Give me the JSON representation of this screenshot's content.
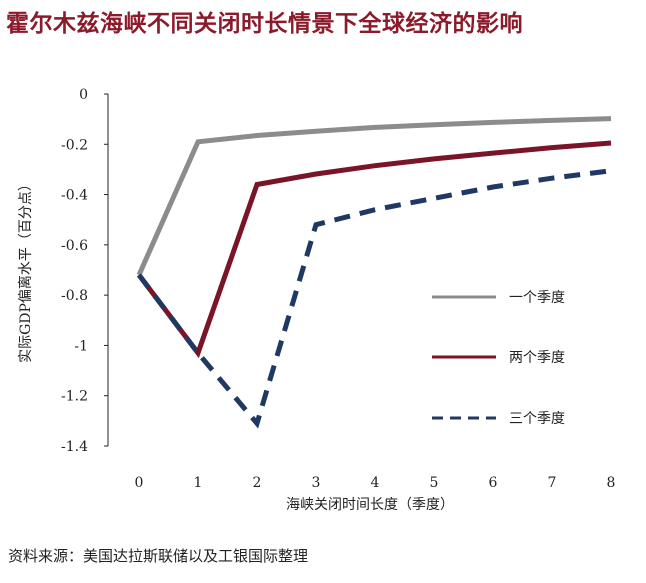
{
  "title": "霍尔木兹海峡不同关闭时长情景下全球经济的影响",
  "source": "资料来源：美国达拉斯联储以及工银国际整理",
  "chart_data": {
    "type": "line",
    "title": "霍尔木兹海峡不同关闭时长情景下全球经济的影响",
    "xlabel": "海峡关闭时间长度（季度）",
    "ylabel": "实际GDP偏离水平（百分点）",
    "xlim": [
      0,
      8
    ],
    "ylim": [
      -1.4,
      0
    ],
    "x_ticks": [
      0,
      1,
      2,
      3,
      4,
      5,
      6,
      7,
      8
    ],
    "y_ticks": [
      0,
      -0.2,
      -0.4,
      -0.6,
      -0.8,
      -1,
      -1.2,
      -1.4
    ],
    "y_tick_labels": [
      "0",
      "-0.2",
      "-0.4",
      "-0.6",
      "-0.8",
      "-1",
      "-1.2",
      "-1.4"
    ],
    "grid": false,
    "legend_position": "right",
    "series": [
      {
        "name": "一个季度",
        "color": "#8c8c8c",
        "style": "solid",
        "x": [
          0,
          1,
          2,
          3,
          4,
          5,
          6,
          7,
          8
        ],
        "values": [
          -0.72,
          -0.19,
          -0.165,
          -0.148,
          -0.133,
          -0.122,
          -0.113,
          -0.105,
          -0.098
        ]
      },
      {
        "name": "两个季度",
        "color": "#7a1528",
        "style": "solid",
        "x": [
          0,
          1,
          2,
          3,
          4,
          5,
          6,
          7,
          8
        ],
        "values": [
          -0.72,
          -1.03,
          -0.36,
          -0.318,
          -0.285,
          -0.258,
          -0.235,
          -0.213,
          -0.195
        ]
      },
      {
        "name": "三个季度",
        "color": "#1f3864",
        "style": "dashed",
        "x": [
          0,
          1,
          2,
          3,
          4,
          5,
          6,
          7,
          8
        ],
        "values": [
          -0.72,
          -1.03,
          -1.31,
          -0.52,
          -0.46,
          -0.415,
          -0.37,
          -0.335,
          -0.305
        ]
      }
    ]
  }
}
